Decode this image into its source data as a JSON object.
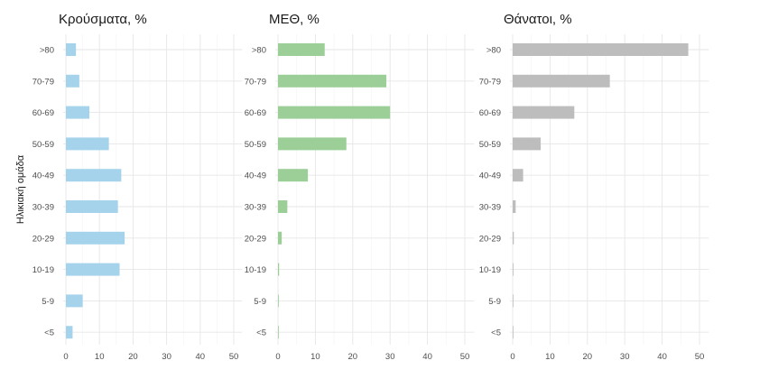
{
  "chart_data": {
    "type": "bar",
    "orientation": "horizontal",
    "ylabel": "Ηλικιακή ομάδα",
    "categories": [
      ">80",
      "70-79",
      "60-69",
      "50-59",
      "40-49",
      "30-39",
      "20-29",
      "10-19",
      "5-9",
      "<5"
    ],
    "xticks": [
      0,
      10,
      20,
      30,
      40,
      50
    ],
    "xlim": [
      0,
      50
    ],
    "grid": true,
    "panels": [
      {
        "title": "Κρούσματα, %",
        "color": "#a6d3ec",
        "values": [
          3,
          4,
          7,
          12.8,
          16.5,
          15.5,
          17.5,
          16,
          5,
          2
        ]
      },
      {
        "title": "ΜΕΘ, %",
        "color": "#9ccf97",
        "values": [
          12.5,
          29,
          30,
          18.3,
          8,
          2.5,
          1,
          0.3,
          0.2,
          0.2
        ]
      },
      {
        "title": "Θάνατοι, %",
        "color": "#bdbdbd",
        "values": [
          47,
          26,
          16.5,
          7.5,
          2.8,
          0.8,
          0.3,
          0.2,
          0.1,
          0.1
        ]
      }
    ]
  }
}
